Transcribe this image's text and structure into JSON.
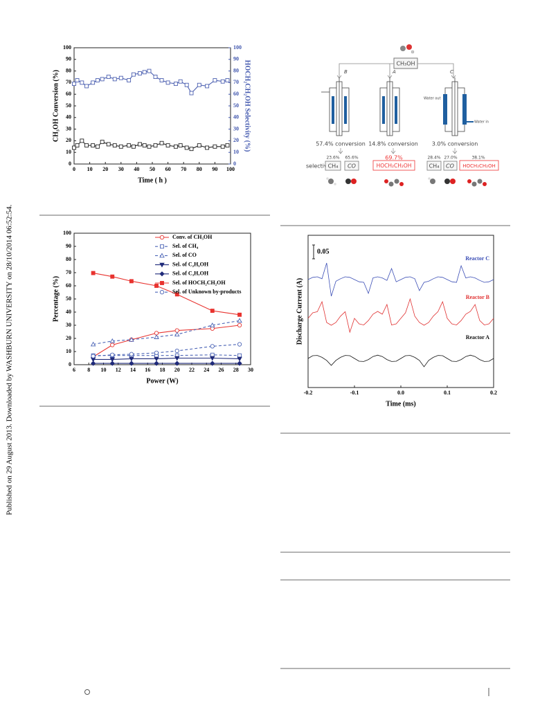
{
  "side_note": "Published on 29 August 2013. Downloaded by WASHBURN UNIVERSITY on 28/10/2014 06:52:54.",
  "chart_data": [
    {
      "type": "line",
      "x_label": "Time ( h )",
      "y_label": "CH₃OH  Conversion (%)",
      "y2_label": "HOCH₂CH₂OH  Selectivity (%)",
      "y2_color": "#3f55ad",
      "xlim": [
        0,
        100
      ],
      "xticks": [
        0,
        10,
        20,
        30,
        40,
        50,
        60,
        70,
        80,
        90,
        100
      ],
      "ylim": [
        0,
        100
      ],
      "yticks": [
        0,
        10,
        20,
        30,
        40,
        50,
        60,
        70,
        80,
        90,
        100
      ],
      "y2lim": [
        0,
        100
      ],
      "y2ticks": [
        0,
        10,
        20,
        30,
        40,
        50,
        60,
        70,
        80,
        90,
        100
      ],
      "x": [
        0,
        2,
        5,
        8,
        12,
        15,
        18,
        22,
        26,
        30,
        35,
        38,
        42,
        45,
        48,
        52,
        56,
        60,
        65,
        68,
        72,
        75,
        80,
        85,
        90,
        95,
        98
      ],
      "series": [
        {
          "color": "#222222",
          "marker": "square",
          "filled": false,
          "values": [
            14,
            16,
            20,
            16,
            16,
            15,
            19,
            17,
            16,
            15,
            16,
            15,
            17,
            16,
            15,
            16,
            18,
            16,
            15,
            16,
            14,
            13,
            16,
            14,
            15,
            15,
            16
          ]
        },
        {
          "color": "#4b5fb0",
          "marker": "square",
          "filled": false,
          "axis": "y2",
          "values": [
            69,
            72,
            70,
            67,
            70,
            72,
            73,
            75,
            73,
            74,
            72,
            77,
            78,
            79,
            80,
            75,
            72,
            70,
            69,
            71,
            68,
            61,
            68,
            67,
            72,
            71,
            72
          ]
        }
      ]
    },
    {
      "type": "line",
      "x_label": "Power (W)",
      "y_label": "Percentage (%)",
      "legend": "upper right",
      "xlim": [
        6,
        30
      ],
      "xticks": [
        6,
        8,
        10,
        12,
        14,
        16,
        18,
        20,
        22,
        24,
        26,
        28,
        30
      ],
      "ylim": [
        0,
        100
      ],
      "yticks": [
        0,
        10,
        20,
        30,
        40,
        50,
        60,
        70,
        80,
        90,
        100
      ],
      "x": [
        8.6,
        11.2,
        13.8,
        17.2,
        20,
        24.8,
        28.5
      ],
      "series": [
        {
          "name": "Conv. of CH₃OH",
          "color": "#e8332f",
          "dashed": false,
          "marker": "circle",
          "filled": false,
          "values": [
            6,
            15,
            19,
            24,
            26,
            27.5,
            30
          ]
        },
        {
          "name": "Sel. of CH₄",
          "color": "#4a63b5",
          "dashed": true,
          "marker": "square",
          "filled": false,
          "values": [
            7,
            7,
            7,
            7,
            7,
            7.5,
            7
          ]
        },
        {
          "name": "Sel. of CO",
          "color": "#4a63b5",
          "dashed": true,
          "marker": "triangle",
          "filled": false,
          "values": [
            15.5,
            18,
            19,
            21,
            23,
            30,
            33.5
          ]
        },
        {
          "name": "Sel. of C₂H₅OH",
          "color": "#1f2a7a",
          "dashed": false,
          "marker": "tri_down",
          "filled": true,
          "values": [
            4,
            4,
            4.5,
            4.5,
            5,
            5,
            4.5
          ]
        },
        {
          "name": "Sel. of C₃H₇OH",
          "color": "#1f2a7a",
          "dashed": false,
          "marker": "diamond",
          "filled": true,
          "values": [
            1,
            1,
            1,
            1,
            1,
            1,
            1
          ]
        },
        {
          "name": "Sel. of HOCH₂CH₂OH",
          "color": "#e8332f",
          "dashed": false,
          "marker": "square",
          "filled": true,
          "values": [
            69.7,
            67,
            63.5,
            60,
            53.5,
            41,
            38
          ]
        },
        {
          "name": "Sel. of Unknown by-products",
          "color": "#4a63b5",
          "dashed": true,
          "marker": "circle",
          "filled": false,
          "values": [
            6.5,
            7.5,
            8,
            9,
            10.5,
            14,
            15.5
          ]
        }
      ]
    },
    {
      "type": "line",
      "x_label": "Time (ms)",
      "y_label": "Discharge Current (A)",
      "scale_bar": 0.05,
      "series_labels": true,
      "xlim": [
        -0.2,
        0.2
      ],
      "xticks": [
        -0.2,
        -0.1,
        {
          "value": 0,
          "label": "0.0"
        },
        0.1,
        0.2
      ],
      "ylim": [
        0,
        0.55
      ],
      "x": [
        -0.2,
        -0.19,
        -0.18,
        -0.17,
        -0.16,
        -0.15,
        -0.14,
        -0.13,
        -0.12,
        -0.11,
        -0.1,
        -0.09,
        -0.08,
        -0.07,
        -0.06,
        -0.05,
        -0.04,
        -0.03,
        -0.02,
        -0.01,
        0,
        0.01,
        0.02,
        0.03,
        0.04,
        0.05,
        0.06,
        0.07,
        0.08,
        0.09,
        0.1,
        0.11,
        0.12,
        0.13,
        0.14,
        0.15,
        0.16,
        0.17,
        0.18,
        0.19,
        0.2
      ],
      "series": [
        {
          "name": "Reactor C",
          "color": "#3a4db5",
          "values": [
            0.39,
            0.398,
            0.4,
            0.393,
            0.45,
            0.33,
            0.384,
            0.393,
            0.4,
            0.398,
            0.39,
            0.382,
            0.38,
            0.34,
            0.396,
            0.4,
            0.396,
            0.387,
            0.43,
            0.382,
            0.39,
            0.398,
            0.4,
            0.393,
            0.35,
            0.38,
            0.384,
            0.393,
            0.4,
            0.398,
            0.39,
            0.382,
            0.38,
            0.44,
            0.396,
            0.4,
            0.396,
            0.387,
            0.38,
            0.382,
            0.39
          ]
        },
        {
          "name": "Reactor B",
          "color": "#e03030",
          "values": [
            0.25,
            0.27,
            0.274,
            0.31,
            0.235,
            0.225,
            0.235,
            0.258,
            0.274,
            0.2,
            0.25,
            0.23,
            0.226,
            0.242,
            0.265,
            0.275,
            0.265,
            0.3,
            0.226,
            0.23,
            0.25,
            0.27,
            0.32,
            0.258,
            0.235,
            0.225,
            0.235,
            0.258,
            0.274,
            0.31,
            0.25,
            0.23,
            0.226,
            0.242,
            0.265,
            0.275,
            0.3,
            0.242,
            0.226,
            0.23,
            0.25
          ]
        },
        {
          "name": "Reactor A",
          "color": "#111111",
          "values": [
            0.105,
            0.115,
            0.116,
            0.109,
            0.098,
            0.08,
            0.098,
            0.109,
            0.116,
            0.115,
            0.105,
            0.095,
            0.094,
            0.101,
            0.112,
            0.117,
            0.112,
            0.101,
            0.094,
            0.095,
            0.105,
            0.115,
            0.116,
            0.109,
            0.098,
            0.075,
            0.098,
            0.109,
            0.116,
            0.115,
            0.105,
            0.095,
            0.094,
            0.101,
            0.112,
            0.117,
            0.112,
            0.101,
            0.094,
            0.095,
            0.105
          ]
        }
      ]
    }
  ],
  "diagram": {
    "feed": "CH₃OH",
    "selectivity_label": "selectivity",
    "water_out": "Water out",
    "water_in": "Water in",
    "reactors": [
      {
        "label": "B",
        "conversion": "57.4% conversion",
        "products": [
          {
            "selectivity": "23.6%",
            "name": "CH₄"
          },
          {
            "selectivity": "65.6%",
            "name": "CO"
          }
        ]
      },
      {
        "label": "A",
        "conversion": "14.8% conversion",
        "products": [
          {
            "selectivity": "69.7%",
            "name": "HOCH₂CH₂OH"
          }
        ]
      },
      {
        "label": "C",
        "conversion": "3.0% conversion",
        "products": [
          {
            "selectivity": "28.4%",
            "name": "CH₄"
          },
          {
            "selectivity": "27.0%",
            "name": "CO"
          },
          {
            "selectivity": "38.1%",
            "name": "HOCH₂CH₂OH"
          }
        ]
      }
    ]
  }
}
